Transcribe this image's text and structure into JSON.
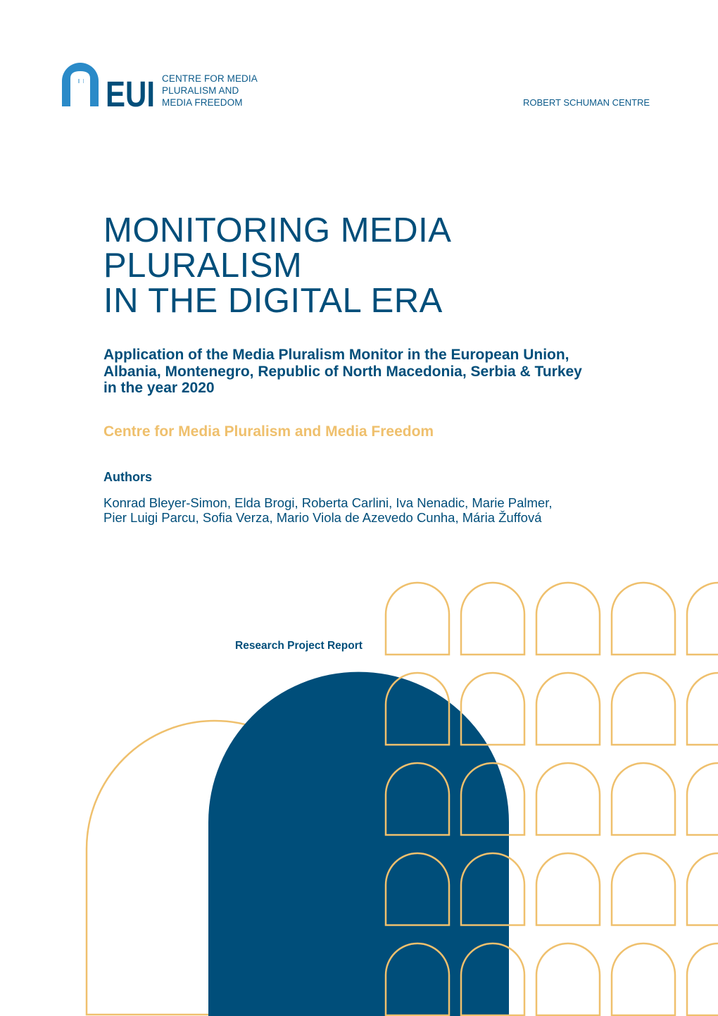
{
  "header": {
    "logo_mark": "EUI",
    "logo_lines": [
      "CENTRE FOR MEDIA",
      "PLURALISM AND",
      "MEDIA FREEDOM"
    ],
    "institution": "ROBERT SCHUMAN CENTRE"
  },
  "title_lines": [
    "MONITORING MEDIA",
    "PLURALISM",
    "IN THE DIGITAL ERA"
  ],
  "subtitle_lines": [
    "Application of the Media Pluralism Monitor in the European Union,",
    "Albania, Montenegro, Republic of North Macedonia, Serbia & Turkey",
    "in the year 2020"
  ],
  "centre_name": "Centre for Media Pluralism and Media Freedom",
  "authors_heading": "Authors",
  "authors_lines": [
    "Konrad Bleyer-Simon, Elda Brogi, Roberta Carlini, Iva Nenadic, Marie Palmer,",
    "Pier Luigi Parcu, Sofia Verza, Mario Viola de Azevedo Cunha, Mária Žuffová"
  ],
  "report_type": "Research Project Report",
  "colors": {
    "navy": "#004e7a",
    "gold": "#efc06d",
    "logo_blue": "#2a8ac8"
  }
}
